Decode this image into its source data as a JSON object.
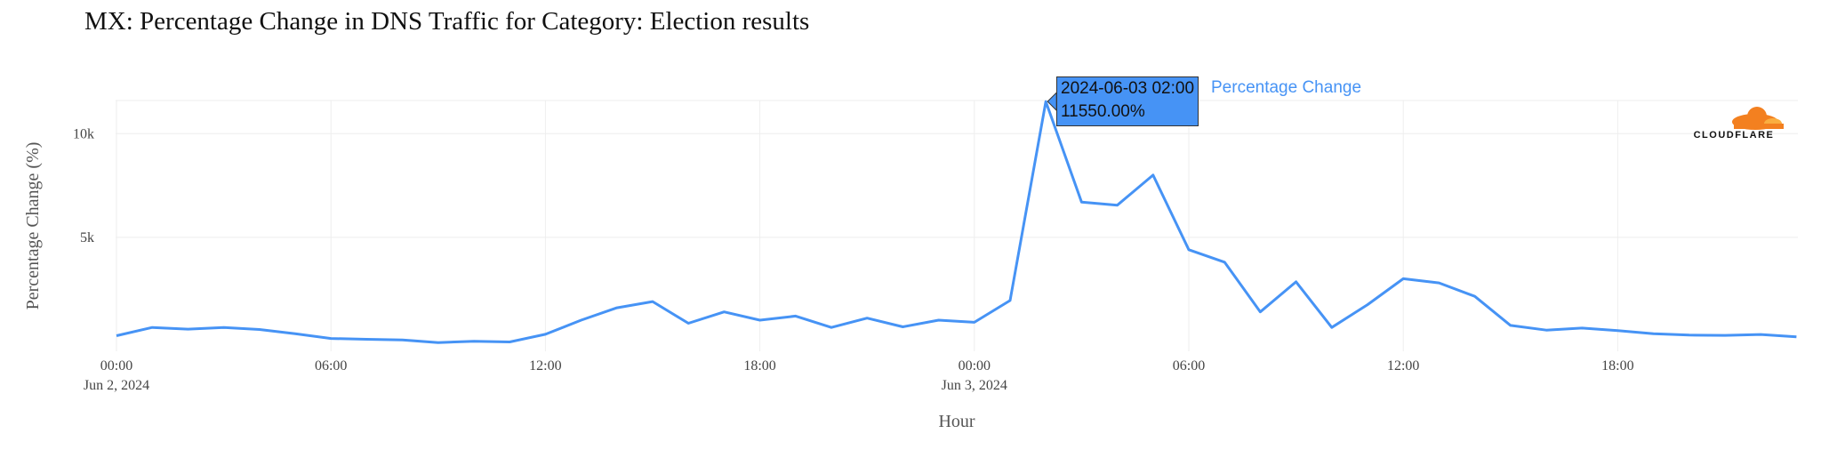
{
  "chart_data": {
    "type": "line",
    "title": "MX: Percentage Change in DNS Traffic for Category: Election results",
    "xlabel": "Hour",
    "ylabel": "Percentage Change (%)",
    "ylim": [
      -500,
      11600
    ],
    "y_ticks": [
      {
        "value": 5000,
        "label": "5k"
      },
      {
        "value": 10000,
        "label": "10k"
      }
    ],
    "x_ticks": [
      {
        "index": 0,
        "label": "00:00",
        "sublabel": "Jun 2, 2024"
      },
      {
        "index": 6,
        "label": "06:00",
        "sublabel": ""
      },
      {
        "index": 12,
        "label": "12:00",
        "sublabel": ""
      },
      {
        "index": 18,
        "label": "18:00",
        "sublabel": ""
      },
      {
        "index": 24,
        "label": "00:00",
        "sublabel": "Jun 3, 2024"
      },
      {
        "index": 30,
        "label": "06:00",
        "sublabel": ""
      },
      {
        "index": 36,
        "label": "12:00",
        "sublabel": ""
      },
      {
        "index": 42,
        "label": "18:00",
        "sublabel": ""
      }
    ],
    "grid": true,
    "series": [
      {
        "name": "Percentage Change",
        "color": "#4693f5",
        "x": [
          "2024-06-02 00:00",
          "2024-06-02 01:00",
          "2024-06-02 02:00",
          "2024-06-02 03:00",
          "2024-06-02 04:00",
          "2024-06-02 05:00",
          "2024-06-02 06:00",
          "2024-06-02 07:00",
          "2024-06-02 08:00",
          "2024-06-02 09:00",
          "2024-06-02 10:00",
          "2024-06-02 11:00",
          "2024-06-02 12:00",
          "2024-06-02 13:00",
          "2024-06-02 14:00",
          "2024-06-02 15:00",
          "2024-06-02 16:00",
          "2024-06-02 17:00",
          "2024-06-02 18:00",
          "2024-06-02 19:00",
          "2024-06-02 20:00",
          "2024-06-02 21:00",
          "2024-06-02 22:00",
          "2024-06-02 23:00",
          "2024-06-03 00:00",
          "2024-06-03 01:00",
          "2024-06-03 02:00",
          "2024-06-03 03:00",
          "2024-06-03 04:00",
          "2024-06-03 05:00",
          "2024-06-03 06:00",
          "2024-06-03 07:00",
          "2024-06-03 08:00",
          "2024-06-03 09:00",
          "2024-06-03 10:00",
          "2024-06-03 11:00",
          "2024-06-03 12:00",
          "2024-06-03 13:00",
          "2024-06-03 14:00",
          "2024-06-03 15:00",
          "2024-06-03 16:00",
          "2024-06-03 17:00",
          "2024-06-03 18:00",
          "2024-06-03 19:00",
          "2024-06-03 20:00",
          "2024-06-03 21:00",
          "2024-06-03 22:00",
          "2024-06-03 23:00"
        ],
        "values": [
          250,
          650,
          570,
          650,
          550,
          350,
          120,
          80,
          50,
          -80,
          -20,
          -50,
          320,
          1000,
          1600,
          1900,
          850,
          1400,
          1000,
          1200,
          650,
          1100,
          680,
          1000,
          900,
          1950,
          11550,
          6700,
          6550,
          8000,
          4400,
          3800,
          1400,
          2850,
          650,
          1750,
          3000,
          2800,
          2150,
          750,
          520,
          620,
          500,
          350,
          280,
          270,
          310,
          200
        ]
      }
    ]
  },
  "tooltip": {
    "time": "2024-06-03 02:00",
    "value": "11550.00%",
    "series_label": "Percentage Change",
    "index": 26
  },
  "logo": {
    "text": "CLOUDFLARE",
    "brand_color": "#f38020"
  }
}
